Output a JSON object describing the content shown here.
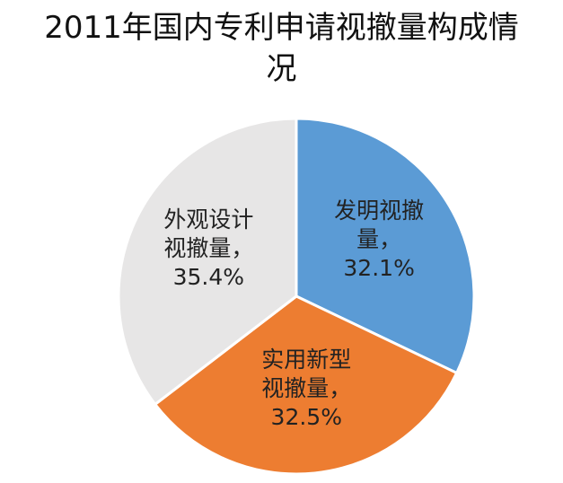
{
  "chart_data": {
    "type": "pie",
    "title": "2011年国内专利申请视撤量构成情况",
    "categories": [
      "发明视撤量，",
      "实用新型视撤量，",
      "外观设计视撤量，"
    ],
    "values": [
      32.1,
      32.5,
      35.4
    ],
    "value_labels": [
      "32.1%",
      "32.5%",
      "35.4%"
    ],
    "colors": [
      "#5b9bd5",
      "#ed7d31",
      "#e7e6e6"
    ]
  }
}
